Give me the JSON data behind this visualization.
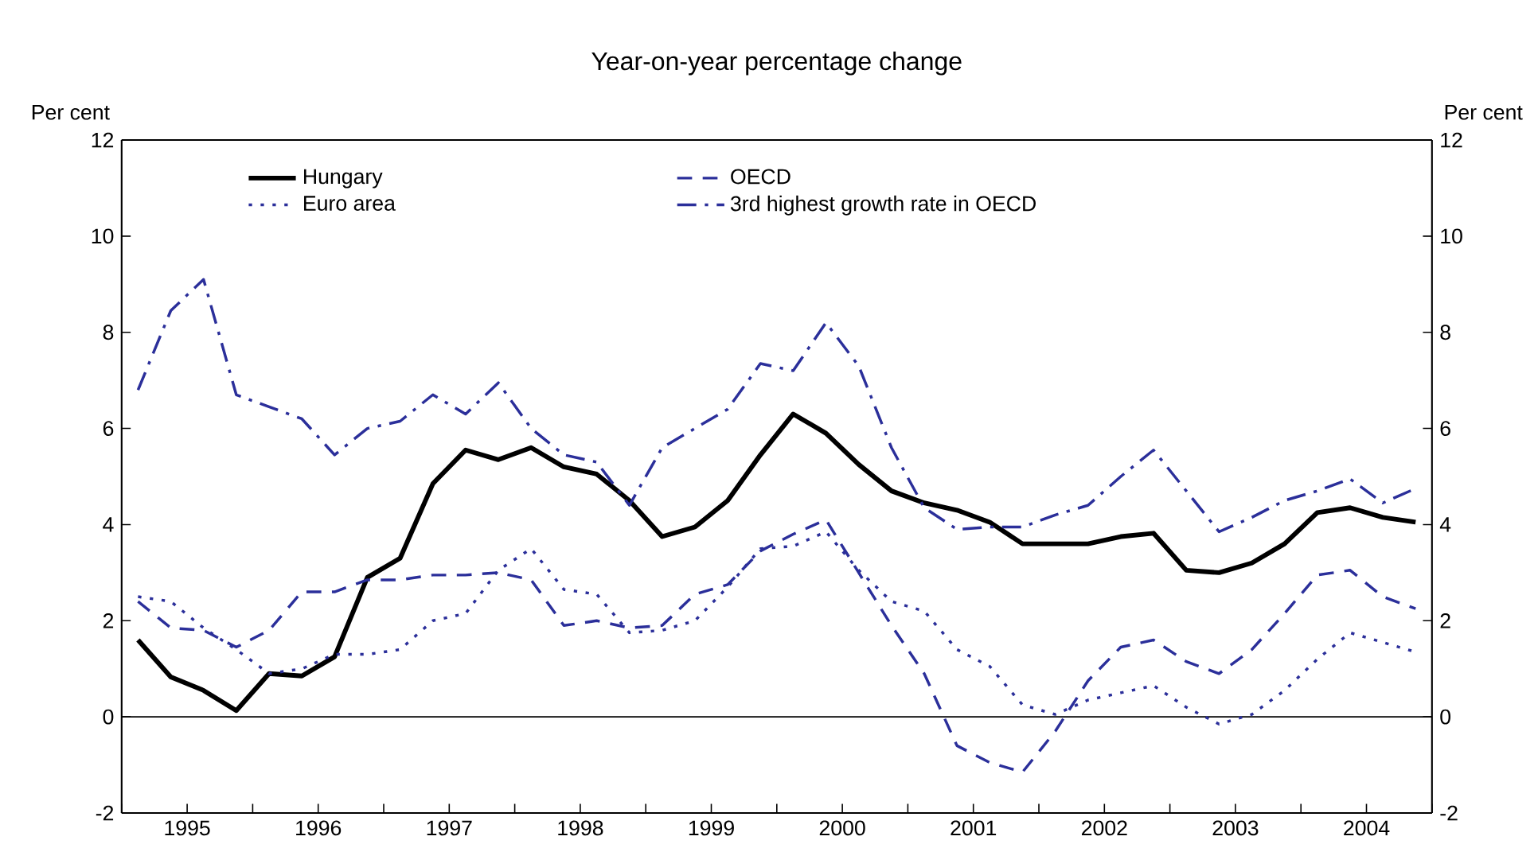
{
  "chart_data": {
    "type": "line",
    "title": "Year-on-year percentage change",
    "ylabel": "Per cent",
    "y2label": "Per cent",
    "x": [
      1995.125,
      1995.375,
      1995.625,
      1995.875,
      1996.125,
      1996.375,
      1996.625,
      1996.875,
      1997.125,
      1997.375,
      1997.625,
      1997.875,
      1998.125,
      1998.375,
      1998.625,
      1998.875,
      1999.125,
      1999.375,
      1999.625,
      1999.875,
      2000.125,
      2000.375,
      2000.625,
      2000.875,
      2001.125,
      2001.375,
      2001.625,
      2001.875,
      2002.125,
      2002.375,
      2002.625,
      2002.875,
      2003.125,
      2003.375,
      2003.625,
      2003.875,
      2004.125,
      2004.375,
      2004.625,
      2004.875
    ],
    "series": [
      {
        "name": "Hungary",
        "color": "#000000",
        "line_style": "solid",
        "values": [
          1.6,
          0.83,
          0.55,
          0.13,
          0.9,
          0.85,
          1.25,
          2.9,
          3.3,
          4.85,
          5.55,
          5.35,
          5.6,
          5.2,
          5.05,
          4.5,
          3.75,
          3.95,
          4.5,
          5.45,
          6.3,
          5.9,
          5.25,
          4.7,
          4.45,
          4.3,
          4.05,
          3.6,
          3.6,
          3.6,
          3.75,
          3.82,
          3.05,
          3.0,
          3.2,
          3.6,
          4.25,
          4.35,
          4.15,
          4.05
        ]
      },
      {
        "name": "OECD",
        "color": "#2b2f9a",
        "line_style": "dashed",
        "values": [
          2.4,
          1.85,
          1.8,
          1.45,
          1.8,
          2.6,
          2.6,
          2.85,
          2.85,
          2.95,
          2.95,
          3.0,
          2.85,
          1.9,
          2.0,
          1.85,
          1.9,
          2.55,
          2.75,
          3.45,
          3.8,
          4.1,
          3.0,
          1.9,
          0.9,
          -0.6,
          -0.95,
          -1.15,
          -0.3,
          0.75,
          1.45,
          1.6,
          1.15,
          0.9,
          1.4,
          2.15,
          2.95,
          3.05,
          2.5,
          2.25
        ]
      },
      {
        "name": "Euro area",
        "color": "#2b2f9a",
        "line_style": "dotted",
        "values": [
          2.5,
          2.4,
          1.85,
          1.4,
          0.9,
          1.0,
          1.3,
          1.3,
          1.4,
          2.0,
          2.15,
          3.05,
          3.5,
          2.65,
          2.55,
          1.75,
          1.8,
          2.0,
          2.7,
          3.5,
          3.55,
          3.85,
          3.05,
          2.4,
          2.2,
          1.4,
          1.05,
          0.25,
          0.05,
          0.35,
          0.5,
          0.65,
          0.2,
          -0.15,
          0.05,
          0.55,
          1.2,
          1.75,
          1.55,
          1.35
        ]
      },
      {
        "name": "3rd highest growth rate in OECD",
        "color": "#2b2f9a",
        "line_style": "dashdot",
        "values": [
          6.8,
          8.45,
          9.1,
          6.7,
          6.45,
          6.2,
          5.45,
          6.0,
          6.15,
          6.7,
          6.3,
          6.95,
          6.0,
          5.45,
          5.3,
          4.4,
          5.6,
          6.0,
          6.4,
          7.35,
          7.2,
          8.2,
          7.3,
          5.6,
          4.35,
          3.9,
          3.95,
          3.95,
          4.2,
          4.4,
          5.0,
          5.55,
          4.7,
          3.85,
          4.15,
          4.5,
          4.7,
          4.95,
          4.45,
          4.75
        ]
      }
    ],
    "xlim": [
      1995,
      2005
    ],
    "xticks": [
      {
        "value": 1995,
        "label": null
      },
      {
        "value": 1995.5,
        "label": "1995"
      },
      {
        "value": 1996,
        "label": null
      },
      {
        "value": 1996.5,
        "label": "1996"
      },
      {
        "value": 1997,
        "label": null
      },
      {
        "value": 1997.5,
        "label": "1997"
      },
      {
        "value": 1998,
        "label": null
      },
      {
        "value": 1998.5,
        "label": "1998"
      },
      {
        "value": 1999,
        "label": null
      },
      {
        "value": 1999.5,
        "label": "1999"
      },
      {
        "value": 2000,
        "label": null
      },
      {
        "value": 2000.5,
        "label": "2000"
      },
      {
        "value": 2001,
        "label": null
      },
      {
        "value": 2001.5,
        "label": "2001"
      },
      {
        "value": 2002,
        "label": null
      },
      {
        "value": 2002.5,
        "label": "2002"
      },
      {
        "value": 2003,
        "label": null
      },
      {
        "value": 2003.5,
        "label": "2003"
      },
      {
        "value": 2004,
        "label": null
      },
      {
        "value": 2004.5,
        "label": "2004"
      },
      {
        "value": 2005,
        "label": null
      }
    ],
    "ylim": [
      -2,
      12
    ],
    "yticks": [
      -2,
      0,
      2,
      4,
      6,
      8,
      10,
      12
    ],
    "y2lim": [
      -2,
      12
    ],
    "y2ticks": [
      -2,
      0,
      2,
      4,
      6,
      8,
      10,
      12
    ],
    "ref_lines": [
      {
        "axis": "y",
        "value": 0,
        "color": "#000000"
      }
    ],
    "legend": "top",
    "grid": false,
    "marker": "none"
  }
}
